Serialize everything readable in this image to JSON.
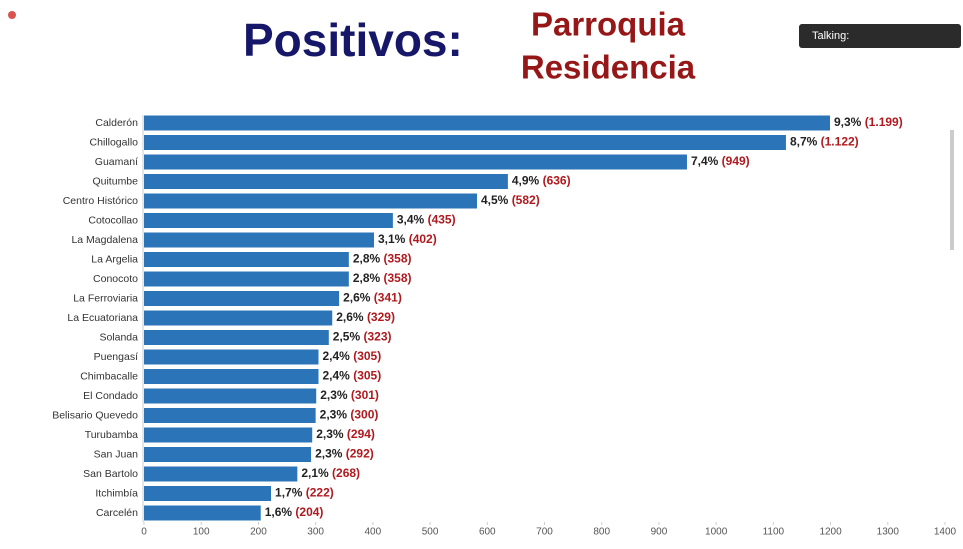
{
  "chart_data": {
    "type": "barh",
    "title": "Positivos:",
    "subtitle": [
      "Parroquia",
      "Residencia"
    ],
    "status": "Talking:",
    "categories": [
      "Calderón",
      "Chillogallo",
      "Guamaní",
      "Quitumbe",
      "Centro Histórico",
      "Cotocollao",
      "La Magdalena",
      "La Argelia",
      "Conocoto",
      "La Ferroviaria",
      "La Ecuatoriana",
      "Solanda",
      "Puengasí",
      "Chimbacalle",
      "El Condado",
      "Belisario Quevedo",
      "Turubamba",
      "San Juan",
      "San Bartolo",
      "Itchimbía",
      "Carcelén"
    ],
    "values": [
      1199,
      1122,
      949,
      636,
      582,
      435,
      402,
      358,
      358,
      341,
      329,
      323,
      305,
      305,
      301,
      300,
      294,
      292,
      268,
      222,
      204
    ],
    "value_labels": [
      "(1.199)",
      "(1.122)",
      "(949)",
      "(636)",
      "(582)",
      "(435)",
      "(402)",
      "(358)",
      "(358)",
      "(341)",
      "(329)",
      "(323)",
      "(305)",
      "(305)",
      "(301)",
      "(300)",
      "(294)",
      "(292)",
      "(268)",
      "(222)",
      "(204)"
    ],
    "share_labels": [
      "9,3%",
      "8,7%",
      "7,4%",
      "4,9%",
      "4,5%",
      "3,4%",
      "3,1%",
      "2,8%",
      "2,8%",
      "2,6%",
      "2,6%",
      "2,5%",
      "2,4%",
      "2,4%",
      "2,3%",
      "2,3%",
      "2,3%",
      "2,3%",
      "2,1%",
      "1,7%",
      "1,6%"
    ],
    "color": "#2b74b8",
    "xlim": [
      0,
      1400
    ],
    "xticks": [
      0,
      100,
      200,
      300,
      400,
      500,
      600,
      700,
      800,
      900,
      1000,
      1100,
      1200,
      1300,
      1400
    ]
  }
}
